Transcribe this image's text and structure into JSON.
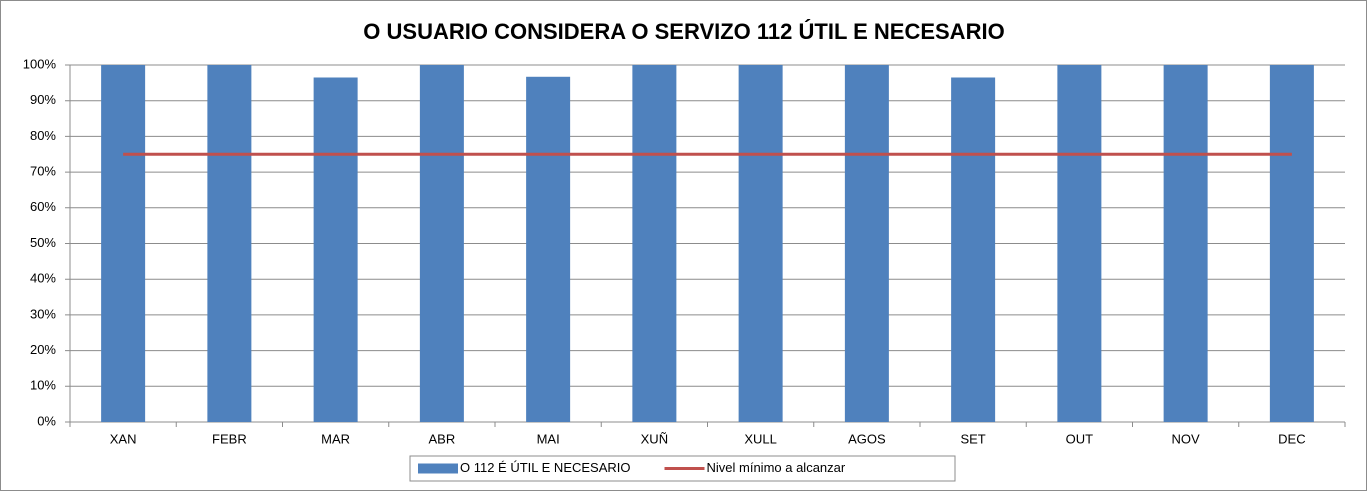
{
  "chart_data": {
    "type": "bar",
    "title": "O USUARIO CONSIDERA O SERVIZO 112 ÚTIL E NECESARIO",
    "categories": [
      "XAN",
      "FEBR",
      "MAR",
      "ABR",
      "MAI",
      "XUÑ",
      "XULL",
      "AGOS",
      "SET",
      "OUT",
      "NOV",
      "DEC"
    ],
    "series": [
      {
        "name": "O 112 É ÚTIL E NECESARIO",
        "type": "bar",
        "color": "#4f81bd",
        "values": [
          100,
          100,
          96.5,
          100,
          96.7,
          100,
          100,
          100,
          96.5,
          100,
          100,
          100
        ]
      },
      {
        "name": "Nivel mínimo a alcanzar",
        "type": "line",
        "color": "#c0504d",
        "values": [
          75,
          75,
          75,
          75,
          75,
          75,
          75,
          75,
          75,
          75,
          75,
          75
        ]
      }
    ],
    "ylim": [
      0,
      100
    ],
    "yticks": [
      {
        "value": 0,
        "label": "0%"
      },
      {
        "value": 10,
        "label": "10%"
      },
      {
        "value": 20,
        "label": "20%"
      },
      {
        "value": 30,
        "label": "30%"
      },
      {
        "value": 40,
        "label": "40%"
      },
      {
        "value": 50,
        "label": "50%"
      },
      {
        "value": 60,
        "label": "60%"
      },
      {
        "value": 70,
        "label": "70%"
      },
      {
        "value": 80,
        "label": "80%"
      },
      {
        "value": 90,
        "label": "90%"
      },
      {
        "value": 100,
        "label": "100%"
      }
    ],
    "grid": true,
    "legend": "bottom"
  }
}
